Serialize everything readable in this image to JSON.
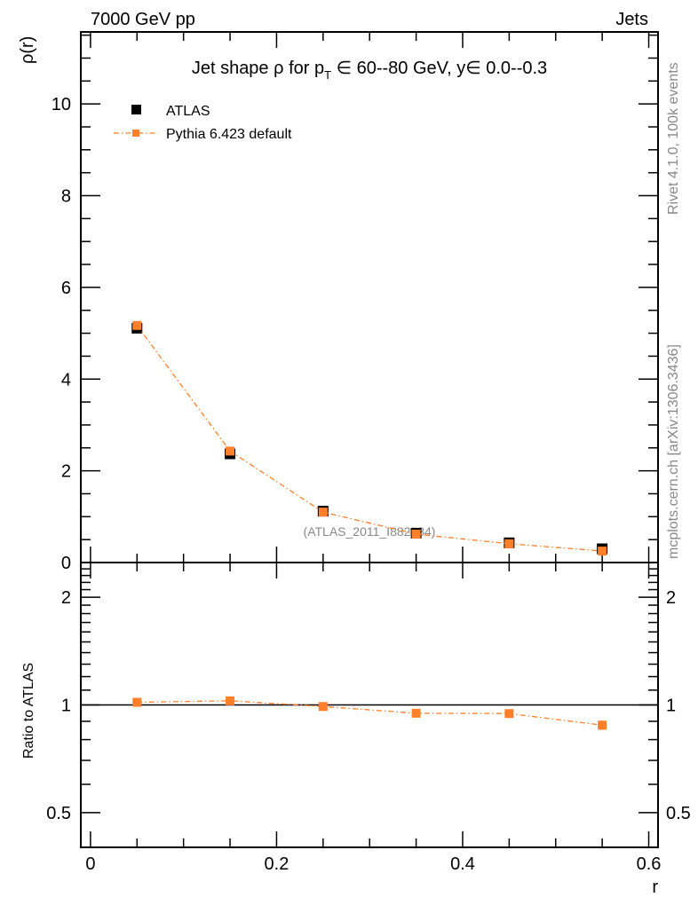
{
  "header": {
    "left": "7000 GeV pp",
    "right": "Jets"
  },
  "side_labels": {
    "top": "Rivet 4.1.0,  100k events",
    "bottom": "mcplots.cern.ch [arXiv:1306.3436]"
  },
  "watermark": "(ATLAS_2011_I882984)",
  "colors": {
    "atlas": "#000000",
    "pythia": "#ff7f2a"
  },
  "chart_data": [
    {
      "type": "scatter",
      "title_parts": {
        "pre": "Jet shape ",
        "rho": "ρ",
        "mid": " for p",
        "sub": "T",
        "in1": " ∈ 60--80 GeV, y",
        "in2": "∈ 0.0--0.3"
      },
      "xlabel": "r",
      "ylabel": "ρ(r)",
      "xlim": [
        -0.0104,
        0.61
      ],
      "ylim": [
        0,
        11.57
      ],
      "xticks": [
        0,
        0.2,
        0.4,
        0.6
      ],
      "xtick_labels": [
        "0",
        "0.2",
        "0.4",
        "0.6"
      ],
      "yticks": [
        0,
        2,
        4,
        6,
        8,
        10
      ],
      "ytick_labels": [
        "0",
        "2",
        "4",
        "6",
        "8",
        "10"
      ],
      "legend_position": "top-left",
      "x": [
        0.05,
        0.15,
        0.25,
        0.35,
        0.45,
        0.55
      ],
      "series": [
        {
          "name": "ATLAS",
          "values": [
            5.11,
            2.37,
            1.12,
            0.64,
            0.43,
            0.3
          ]
        },
        {
          "name": "Pythia 6.423 default",
          "values": [
            5.17,
            2.43,
            1.1,
            0.62,
            0.41,
            0.25
          ]
        }
      ]
    },
    {
      "type": "line",
      "scale": "log",
      "ylabel": "Ratio to ATLAS",
      "xlabel": "r",
      "xlim": [
        -0.0104,
        0.61
      ],
      "ylim": [
        0.4,
        2.5
      ],
      "yticks": [
        0.5,
        1,
        2
      ],
      "ytick_labels": [
        "0.5",
        "1",
        "2"
      ],
      "x": [
        0.05,
        0.15,
        0.25,
        0.35,
        0.45,
        0.55
      ],
      "series": [
        {
          "name": "Pythia 6.423 default",
          "values": [
            1.017,
            1.027,
            0.99,
            0.948,
            0.946,
            0.878
          ],
          "errors": [
            0.008,
            0.01,
            0.02,
            0.022,
            0.02,
            0.022
          ]
        }
      ]
    }
  ]
}
